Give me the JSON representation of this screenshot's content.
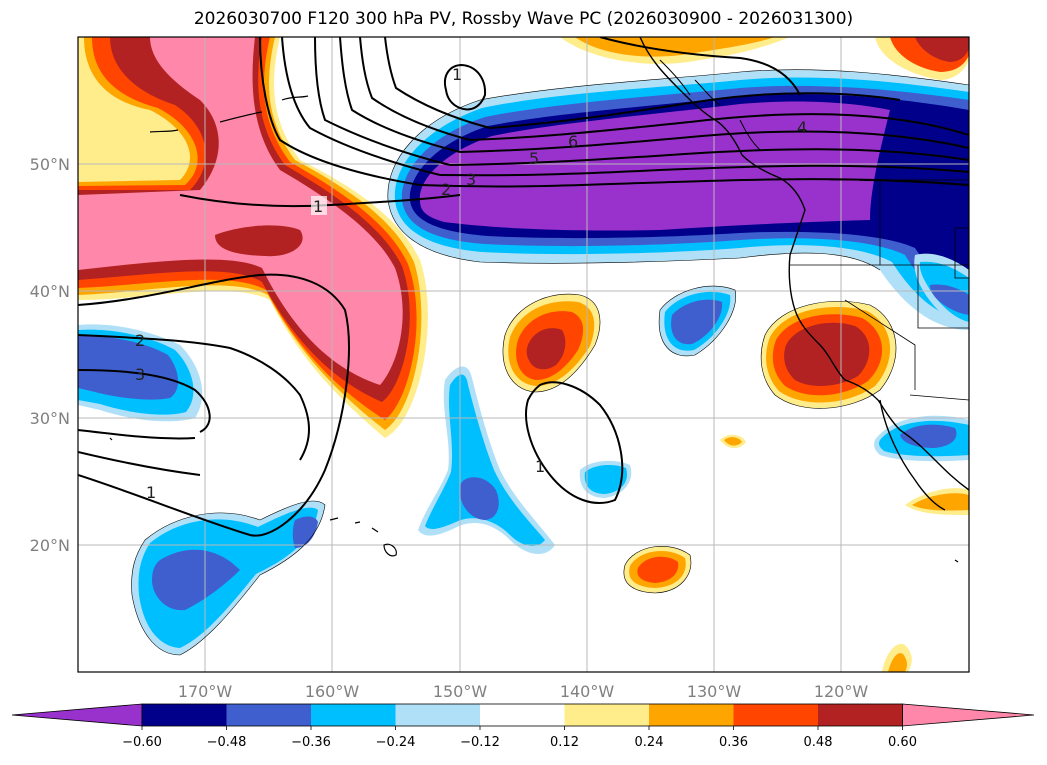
{
  "title": "2026030700 F120 300 hPa PV, Rossby Wave PC (2026030900 - 2026031300)",
  "lon_labels": [
    "170°W",
    "160°W",
    "150°W",
    "140°W",
    "130°W",
    "120°W"
  ],
  "lat_labels": [
    "50°N",
    "40°N",
    "30°N",
    "20°N"
  ],
  "colorbar": {
    "labels": [
      "−0.60",
      "−0.48",
      "−0.36",
      "−0.24",
      "−0.12",
      "0.12",
      "0.24",
      "0.36",
      "0.48",
      "0.60"
    ],
    "colors": [
      "#9932cc",
      "#00008b",
      "#3f5fcf",
      "#00bfff",
      "#b0e0f8",
      "#ffffff",
      "#ffec8b",
      "#ffa500",
      "#ff4500",
      "#b22222",
      "#ff88aa"
    ]
  },
  "contour_labels": [
    "1",
    "2",
    "3",
    "4",
    "5",
    "6",
    "1",
    "2",
    "3",
    "1",
    "1"
  ]
}
